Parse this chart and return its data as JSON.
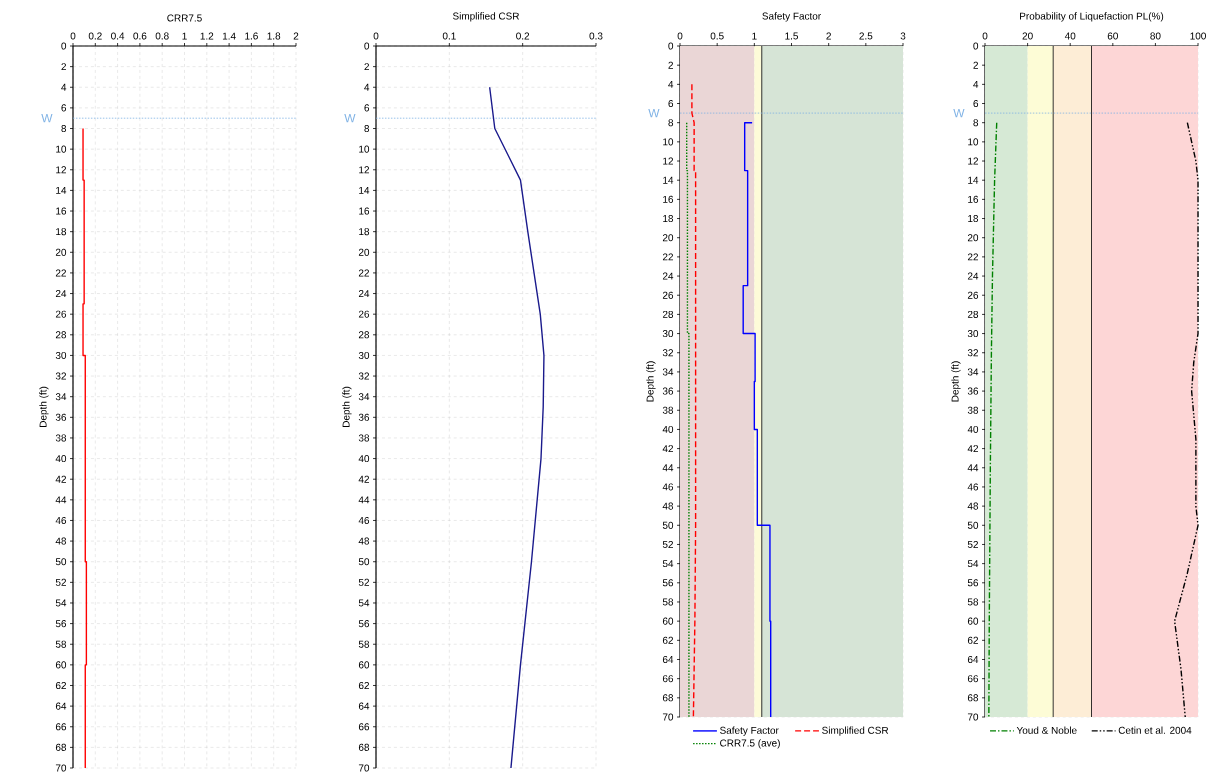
{
  "chart_data": [
    {
      "type": "line",
      "title": "CRR7.5",
      "ylabel": "Depth (ft)",
      "xlim": [
        0,
        2
      ],
      "xticks": [
        0,
        0.2,
        0.4,
        0.6,
        0.8,
        1,
        1.2,
        1.4,
        1.6,
        1.8,
        2
      ],
      "ylim": [
        70,
        0
      ],
      "yticks": [
        0,
        2,
        4,
        6,
        8,
        10,
        12,
        14,
        16,
        18,
        20,
        22,
        24,
        26,
        28,
        30,
        32,
        34,
        36,
        38,
        40,
        42,
        44,
        46,
        48,
        50,
        52,
        54,
        56,
        58,
        60,
        62,
        64,
        66,
        68,
        70
      ],
      "grid": true,
      "series": [
        {
          "color": "#ff0000",
          "line_style": "solid",
          "x": [
            0.09,
            0.09,
            0.1,
            0.1,
            0.09,
            0.09,
            0.11,
            0.11,
            0.12,
            0.12,
            0.11,
            0.11
          ],
          "values": [
            8,
            13,
            13,
            25,
            25,
            30,
            30,
            50,
            50,
            60,
            60,
            70
          ]
        }
      ],
      "ref_lines": [
        {
          "axis": "y",
          "value": 7,
          "label": "W",
          "color": "#7fb2e5",
          "line_style": "dotted"
        }
      ]
    },
    {
      "type": "line",
      "title": "Simplified CSR",
      "ylabel": "Depth (ft)",
      "xlim": [
        0,
        0.3
      ],
      "xticks": [
        0,
        0.1,
        0.2,
        0.3
      ],
      "ylim": [
        70,
        0
      ],
      "yticks": [
        0,
        2,
        4,
        6,
        8,
        10,
        12,
        14,
        16,
        18,
        20,
        22,
        24,
        26,
        28,
        30,
        32,
        34,
        36,
        38,
        40,
        42,
        44,
        46,
        48,
        50,
        52,
        54,
        56,
        58,
        60,
        62,
        64,
        66,
        68,
        70
      ],
      "grid": true,
      "series": [
        {
          "color": "#1a1a8c",
          "line_style": "solid",
          "x": [
            0.155,
            0.162,
            0.197,
            0.207,
            0.224,
            0.229,
            0.228,
            0.225,
            0.212,
            0.197,
            0.184
          ],
          "values": [
            4,
            8,
            13,
            18,
            26,
            30,
            35,
            40,
            50,
            60,
            70
          ]
        }
      ],
      "ref_lines": [
        {
          "axis": "y",
          "value": 7,
          "label": "W",
          "color": "#7fb2e5",
          "line_style": "dotted"
        }
      ]
    },
    {
      "type": "line",
      "title": "Safety Factor",
      "ylabel": "Depth (ft)",
      "xlim": [
        0,
        3
      ],
      "xticks": [
        0,
        0.5,
        1,
        1.5,
        2,
        2.5,
        3
      ],
      "ylim": [
        70,
        0
      ],
      "yticks": [
        0,
        2,
        4,
        6,
        8,
        10,
        12,
        14,
        16,
        18,
        20,
        22,
        24,
        26,
        28,
        30,
        32,
        34,
        36,
        38,
        40,
        42,
        44,
        46,
        48,
        50,
        52,
        54,
        56,
        58,
        60,
        62,
        64,
        66,
        68,
        70
      ],
      "grid": true,
      "legend": "bottom",
      "series": [
        {
          "name": "Safety Factor",
          "color": "#0000ff",
          "line_style": "solid",
          "x": [
            0.97,
            0.87,
            0.87,
            0.91,
            0.91,
            0.85,
            0.85,
            1.01,
            1.01,
            1.0,
            1.0,
            1.04,
            1.04,
            1.21,
            1.21,
            1.22,
            1.22
          ],
          "values": [
            8,
            8,
            13,
            13,
            25,
            25,
            30,
            30,
            35,
            35,
            40,
            40,
            50,
            50,
            60,
            60,
            70
          ]
        },
        {
          "name": "Simplified CSR",
          "color": "#ff0000",
          "line_style": "dashed",
          "x": [
            0.16,
            0.16,
            0.19,
            0.19,
            0.21,
            0.21,
            0.2,
            0.18
          ],
          "values": [
            4,
            7,
            8,
            13,
            13,
            50,
            60,
            70
          ]
        },
        {
          "name": "CRR7.5 (ave)",
          "color": "#008000",
          "line_style": "dotted",
          "x": [
            0.09,
            0.09,
            0.1,
            0.1,
            0.12,
            0.12
          ],
          "values": [
            8,
            13,
            13,
            30,
            30,
            70
          ]
        }
      ],
      "bands": [
        {
          "axis": "x",
          "from": 0,
          "to": 1,
          "color": "#ead6d6"
        },
        {
          "axis": "x",
          "from": 1,
          "to": 1.1,
          "color": "#fdfbd8"
        },
        {
          "axis": "x",
          "from": 1.1,
          "to": 3,
          "color": "#d6e4d6"
        }
      ],
      "ref_lines": [
        {
          "axis": "x",
          "value": 1.1,
          "color": "#000000",
          "line_style": "solid"
        },
        {
          "axis": "y",
          "value": 7,
          "label": "W",
          "color": "#7fb2e5",
          "line_style": "dotted"
        }
      ]
    },
    {
      "type": "line",
      "title": "Probability of Liquefaction PL(%)",
      "ylabel": "Depth (ft)",
      "xlim": [
        0,
        100
      ],
      "xticks": [
        0,
        20,
        40,
        60,
        80,
        100
      ],
      "ylim": [
        70,
        0
      ],
      "yticks": [
        0,
        2,
        4,
        6,
        8,
        10,
        12,
        14,
        16,
        18,
        20,
        22,
        24,
        26,
        28,
        30,
        32,
        34,
        36,
        38,
        40,
        42,
        44,
        46,
        48,
        50,
        52,
        54,
        56,
        58,
        60,
        62,
        64,
        66,
        68,
        70
      ],
      "grid": true,
      "legend": "bottom",
      "series": [
        {
          "name": "Youd & Noble",
          "color": "#008000",
          "line_style": "dashdot",
          "x": [
            5.5,
            4.5,
            3.5,
            3,
            2.5,
            2,
            1.8
          ],
          "values": [
            8,
            14,
            24,
            32,
            44,
            60,
            70
          ]
        },
        {
          "name": "Cetin et al. 2004",
          "color": "#000000",
          "line_style": "dashdotdot",
          "x": [
            95,
            99,
            100,
            100,
            98,
            97,
            99,
            99,
            100,
            95,
            89,
            92,
            94
          ],
          "values": [
            8,
            12,
            14,
            30,
            33,
            36,
            41,
            48,
            50,
            55,
            60,
            65,
            70
          ]
        }
      ],
      "bands": [
        {
          "axis": "x",
          "from": 0,
          "to": 20,
          "color": "#d6e9d5"
        },
        {
          "axis": "x",
          "from": 20,
          "to": 32,
          "color": "#fdfcd6"
        },
        {
          "axis": "x",
          "from": 32,
          "to": 50,
          "color": "#fdedd6"
        },
        {
          "axis": "x",
          "from": 50,
          "to": 100,
          "color": "#fdd6d6"
        }
      ],
      "ref_lines": [
        {
          "axis": "x",
          "value": 32,
          "color": "#000000",
          "line_style": "solid"
        },
        {
          "axis": "x",
          "value": 50,
          "color": "#000000",
          "line_style": "solid"
        },
        {
          "axis": "y",
          "value": 7,
          "label": "W",
          "color": "#7fb2e5",
          "line_style": "dotted"
        }
      ]
    }
  ]
}
